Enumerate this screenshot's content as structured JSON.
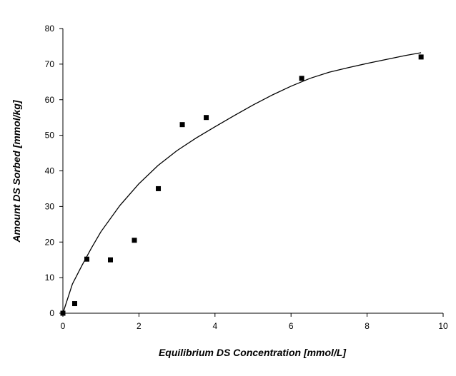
{
  "chart_data": {
    "type": "scatter",
    "title": "",
    "xlabel": "Equilibrium DS Concentration [mmol/L]",
    "ylabel": "Amount DS Sorbed [mmol/kg]",
    "xlim": [
      0,
      10
    ],
    "ylim": [
      0,
      80
    ],
    "xticks": [
      "0",
      "2",
      "4",
      "6",
      "8",
      "10"
    ],
    "yticks": [
      "0",
      "10",
      "20",
      "30",
      "40",
      "50",
      "60",
      "70",
      "80"
    ],
    "grid": false,
    "legend": "none",
    "marker_color": "#000000",
    "line_color": "#000000",
    "points": [
      {
        "x": 0.0,
        "y": 0.0
      },
      {
        "x": 0.31,
        "y": 2.7
      },
      {
        "x": 0.63,
        "y": 15.2
      },
      {
        "x": 1.25,
        "y": 15.0
      },
      {
        "x": 1.88,
        "y": 20.5
      },
      {
        "x": 2.51,
        "y": 35.0
      },
      {
        "x": 3.14,
        "y": 53.0
      },
      {
        "x": 3.77,
        "y": 55.0
      },
      {
        "x": 6.28,
        "y": 66.0
      },
      {
        "x": 9.42,
        "y": 72.0
      }
    ],
    "fit_curve": {
      "x": [
        0,
        0.25,
        0.5,
        0.75,
        1,
        1.5,
        2,
        2.5,
        3,
        3.5,
        4,
        4.5,
        5,
        5.5,
        6,
        6.5,
        7,
        7.5,
        8,
        8.5,
        9,
        9.42
      ],
      "y": [
        0,
        8.2,
        13.4,
        18.3,
        22.9,
        30.3,
        36.4,
        41.5,
        45.7,
        49.2,
        52.4,
        55.5,
        58.5,
        61.3,
        63.8,
        66.0,
        67.7,
        69.0,
        70.2,
        71.3,
        72.4,
        73.2
      ]
    }
  }
}
